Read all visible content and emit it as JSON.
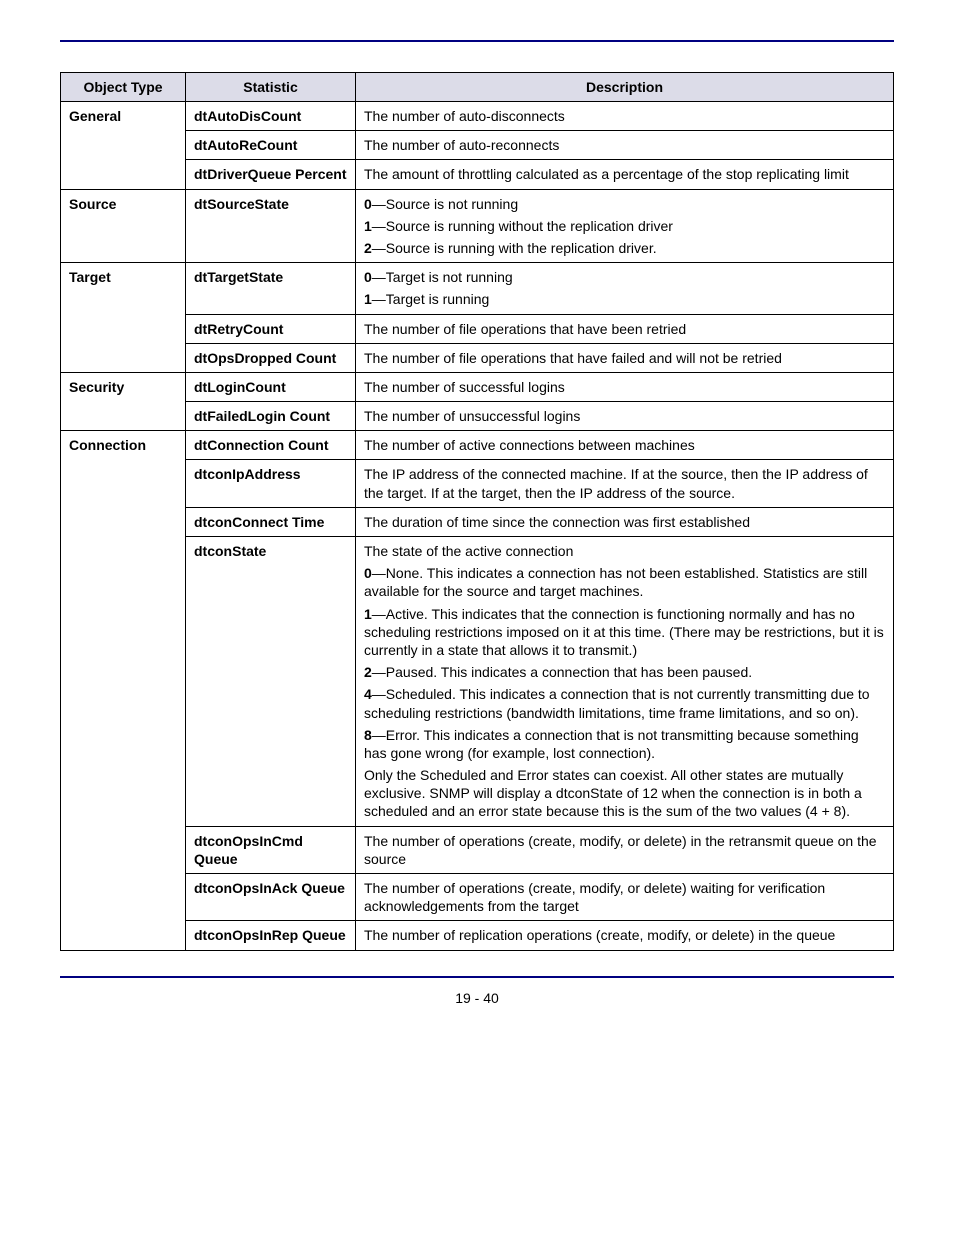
{
  "page_number": "19 - 40",
  "headers": {
    "col1": "Object Type",
    "col2": "Statistic",
    "col3": "Description"
  },
  "colors": {
    "rule": "#000080",
    "header_bg": "#dcdce8",
    "border": "#000000",
    "text": "#000000",
    "background": "#ffffff"
  },
  "rows": [
    {
      "obj": "General",
      "obj_rowspan": 3,
      "stat": "dtAutoDisCount",
      "desc": [
        {
          "plain": "The number of auto-disconnects"
        }
      ]
    },
    {
      "stat": "dtAutoReCount",
      "desc": [
        {
          "plain": "The number of auto-reconnects"
        }
      ]
    },
    {
      "stat": "dtDriverQueue Percent",
      "desc": [
        {
          "plain": "The amount of throttling calculated as a percentage of the stop replicating limit"
        }
      ]
    },
    {
      "obj": "Source",
      "obj_rowspan": 1,
      "stat": "dtSourceState",
      "desc": [
        {
          "bold": "0",
          "rest": "—Source is not running"
        },
        {
          "bold": "1",
          "rest": "—Source is running without the replication driver"
        },
        {
          "bold": "2",
          "rest": "—Source is running with the replication driver."
        }
      ]
    },
    {
      "obj": "Target",
      "obj_rowspan": 3,
      "stat": "dtTargetState",
      "desc": [
        {
          "bold": "0",
          "rest": "—Target is not running"
        },
        {
          "bold": "1",
          "rest": "—Target is running"
        }
      ]
    },
    {
      "stat": "dtRetryCount",
      "desc": [
        {
          "plain": "The number of file operations that have been retried"
        }
      ]
    },
    {
      "stat": "dtOpsDropped Count",
      "desc": [
        {
          "plain": "The number of file operations that have failed and will not be retried"
        }
      ]
    },
    {
      "obj": "Security",
      "obj_rowspan": 2,
      "stat": "dtLoginCount",
      "desc": [
        {
          "plain": "The number of successful logins"
        }
      ]
    },
    {
      "stat": "dtFailedLogin Count",
      "desc": [
        {
          "plain": "The number of unsuccessful logins"
        }
      ]
    },
    {
      "obj": "Connection",
      "obj_rowspan": 7,
      "stat": "dtConnection Count",
      "desc": [
        {
          "plain": "The number of active connections between machines"
        }
      ]
    },
    {
      "stat": "dtconIpAddress",
      "desc": [
        {
          "plain": "The IP address of the connected machine. If at the source, then the IP address of the target. If at the target, then the IP address of the source."
        }
      ]
    },
    {
      "stat": "dtconConnect Time",
      "desc": [
        {
          "plain": "The duration of time since the connection was first established"
        }
      ]
    },
    {
      "stat": "dtconState",
      "desc": [
        {
          "plain": "The state of the active connection"
        },
        {
          "bold": "0",
          "rest": "—None. This indicates a connection has not been established.  Statistics are still available for the source and target machines."
        },
        {
          "bold": "1",
          "rest": "—Active. This indicates that the connection is functioning normally and has no scheduling restrictions imposed on it at this time.  (There may be restrictions, but it is currently in a state that allows it to transmit.)"
        },
        {
          "bold": "2",
          "rest": "—Paused. This indicates a connection that has been paused."
        },
        {
          "bold": "4",
          "rest": "—Scheduled. This indicates a connection that is not currently transmitting due to scheduling restrictions (bandwidth limitations, time frame limitations, and so on)."
        },
        {
          "bold": "8",
          "rest": "—Error. This indicates a connection that is not transmitting because something has gone wrong (for example, lost connection)."
        },
        {
          "plain": "Only the Scheduled and Error states can coexist. All other states are mutually exclusive. SNMP will display a dtconState of 12 when the connection is in both a scheduled and an error state because this is the sum of the two values (4 + 8)."
        }
      ]
    },
    {
      "stat": "dtconOpsInCmd Queue",
      "desc": [
        {
          "plain": "The number of operations (create, modify, or delete) in the retransmit queue on the source"
        }
      ]
    },
    {
      "stat": "dtconOpsInAck Queue",
      "desc": [
        {
          "plain": "The number of operations (create, modify, or delete) waiting for verification acknowledgements from the target"
        }
      ]
    },
    {
      "stat": "dtconOpsInRep Queue",
      "desc": [
        {
          "plain": "The number of replication operations (create, modify, or delete) in the queue"
        }
      ]
    }
  ]
}
